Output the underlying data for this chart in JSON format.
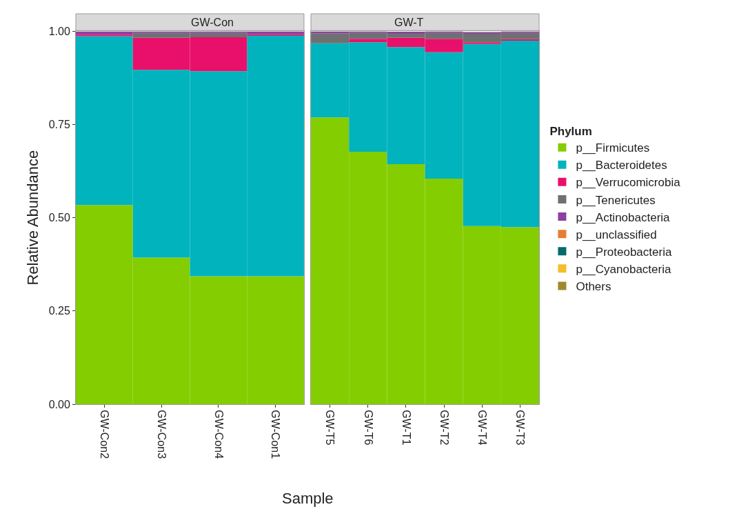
{
  "chart_data": [
    {
      "type": "bar",
      "title": "GW-Con",
      "xlabel": "Sample",
      "ylabel": "Relative Abundance",
      "legend_title": "Phylum",
      "legend": "right",
      "stacked": true,
      "categories": [
        "GW-Con2",
        "GW-Con3",
        "GW-Con4",
        "GW-Con1"
      ],
      "ylim": [
        0,
        1
      ],
      "yticks": [
        {
          "value": 0,
          "label": "0.00"
        },
        {
          "value": 0.25,
          "label": "0.25"
        },
        {
          "value": 0.5,
          "label": "0.50"
        },
        {
          "value": 0.75,
          "label": "0.75"
        },
        {
          "value": 1,
          "label": "1.00"
        }
      ],
      "series": [
        {
          "name": "p__Firmicutes",
          "color": "#84cd00",
          "values": [
            0.534,
            0.393,
            0.343,
            0.343
          ]
        },
        {
          "name": "p__Bacteroidetes",
          "color": "#00b3bc",
          "values": [
            0.453,
            0.504,
            0.55,
            0.647
          ]
        },
        {
          "name": "p__Verrucomicrobia",
          "color": "#e8106a",
          "values": [
            0.004,
            0.086,
            0.091,
            0.003
          ]
        },
        {
          "name": "p__Tenericutes",
          "color": "#6e7071",
          "values": [
            0.0,
            0.013,
            0.012,
            0.0
          ]
        },
        {
          "name": "p__Actinobacteria",
          "color": "#8e3fa0",
          "values": [
            0.009,
            0.004,
            0.004,
            0.007
          ]
        },
        {
          "name": "p__unclassified",
          "color": "#e57e35",
          "values": [
            0,
            0,
            0,
            0
          ]
        },
        {
          "name": "p__Proteobacteria",
          "color": "#046a6a",
          "values": [
            0,
            0,
            0,
            0
          ]
        },
        {
          "name": "p__Cyanobacteria",
          "color": "#f4bd2b",
          "values": [
            0,
            0,
            0,
            0
          ]
        },
        {
          "name": "Others",
          "color": "#a0882d",
          "values": [
            0,
            0,
            0,
            0
          ]
        }
      ]
    },
    {
      "type": "bar",
      "title": "GW-T",
      "stacked": true,
      "tick_labels": "x",
      "categories": [
        "GW-T5",
        "GW-T6",
        "GW-T1",
        "GW-T2",
        "GW-T4",
        "GW-T3"
      ],
      "ylim": [
        0,
        1
      ],
      "series": [
        {
          "color": "#84cd00",
          "values": [
            0.769,
            0.677,
            0.644,
            0.605,
            0.478,
            0.475
          ]
        },
        {
          "color": "#00b3bc",
          "values": [
            0.199,
            0.294,
            0.314,
            0.339,
            0.488,
            0.5
          ]
        },
        {
          "color": "#e8106a",
          "values": [
            0.0,
            0.009,
            0.025,
            0.036,
            0.005,
            0.004
          ]
        },
        {
          "color": "#6e7071",
          "values": [
            0.027,
            0.016,
            0.013,
            0.016,
            0.025,
            0.017
          ]
        },
        {
          "color": "#8e3fa0",
          "values": [
            0.005,
            0.004,
            0.003,
            0.004,
            0.002,
            0.004
          ]
        },
        {
          "color": "#e57e35",
          "values": [
            0,
            0,
            0,
            0,
            0,
            0
          ]
        },
        {
          "color": "#046a6a",
          "values": [
            0,
            0,
            0,
            0,
            0,
            0
          ]
        },
        {
          "color": "#f4bd2b",
          "values": [
            0,
            0,
            0,
            0,
            0,
            0
          ]
        },
        {
          "color": "#a0882d",
          "values": [
            0,
            0,
            0,
            0,
            0,
            0
          ]
        }
      ]
    }
  ]
}
